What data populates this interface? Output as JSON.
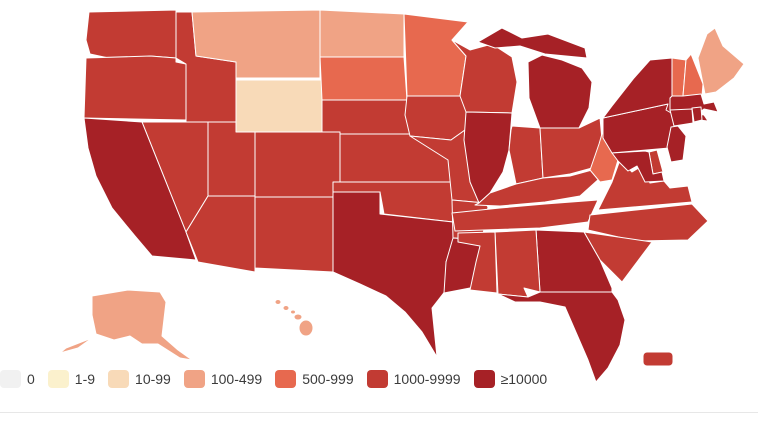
{
  "legend": {
    "items": [
      {
        "label": "0",
        "color": "#f1f1f1"
      },
      {
        "label": "1-9",
        "color": "#fbf1cd"
      },
      {
        "label": "10-99",
        "color": "#f8dab8"
      },
      {
        "label": "100-499",
        "color": "#f0a385"
      },
      {
        "label": "500-999",
        "color": "#e7694f"
      },
      {
        "label": "1000-9999",
        "color": "#c23b33"
      },
      {
        "label": "≥10000",
        "color": "#a62126"
      }
    ]
  },
  "map": {
    "border_color": "#ffffff",
    "background_color": "#ffffff",
    "divider_color": "#e7e7e7",
    "states": [
      {
        "abbr": "WA",
        "name": "Washington",
        "category": "1000-9999"
      },
      {
        "abbr": "OR",
        "name": "Oregon",
        "category": "1000-9999"
      },
      {
        "abbr": "CA",
        "name": "California",
        "category": "≥10000"
      },
      {
        "abbr": "NV",
        "name": "Nevada",
        "category": "1000-9999"
      },
      {
        "abbr": "ID",
        "name": "Idaho",
        "category": "1000-9999"
      },
      {
        "abbr": "MT",
        "name": "Montana",
        "category": "100-499"
      },
      {
        "abbr": "WY",
        "name": "Wyoming",
        "category": "10-99"
      },
      {
        "abbr": "UT",
        "name": "Utah",
        "category": "1000-9999"
      },
      {
        "abbr": "CO",
        "name": "Colorado",
        "category": "1000-9999"
      },
      {
        "abbr": "AZ",
        "name": "Arizona",
        "category": "1000-9999"
      },
      {
        "abbr": "NM",
        "name": "New Mexico",
        "category": "1000-9999"
      },
      {
        "abbr": "ND",
        "name": "North Dakota",
        "category": "100-499"
      },
      {
        "abbr": "SD",
        "name": "South Dakota",
        "category": "500-999"
      },
      {
        "abbr": "NE",
        "name": "Nebraska",
        "category": "1000-9999"
      },
      {
        "abbr": "KS",
        "name": "Kansas",
        "category": "1000-9999"
      },
      {
        "abbr": "OK",
        "name": "Oklahoma",
        "category": "1000-9999"
      },
      {
        "abbr": "TX",
        "name": "Texas",
        "category": "≥10000"
      },
      {
        "abbr": "MN",
        "name": "Minnesota",
        "category": "500-999"
      },
      {
        "abbr": "IA",
        "name": "Iowa",
        "category": "1000-9999"
      },
      {
        "abbr": "MO",
        "name": "Missouri",
        "category": "1000-9999"
      },
      {
        "abbr": "AR",
        "name": "Arkansas",
        "category": "1000-9999"
      },
      {
        "abbr": "LA",
        "name": "Louisiana",
        "category": "≥10000"
      },
      {
        "abbr": "WI",
        "name": "Wisconsin",
        "category": "1000-9999"
      },
      {
        "abbr": "MI",
        "name": "Michigan",
        "category": "≥10000"
      },
      {
        "abbr": "IL",
        "name": "Illinois",
        "category": "≥10000"
      },
      {
        "abbr": "IN",
        "name": "Indiana",
        "category": "1000-9999"
      },
      {
        "abbr": "OH",
        "name": "Ohio",
        "category": "1000-9999"
      },
      {
        "abbr": "KY",
        "name": "Kentucky",
        "category": "1000-9999"
      },
      {
        "abbr": "TN",
        "name": "Tennessee",
        "category": "1000-9999"
      },
      {
        "abbr": "MS",
        "name": "Mississippi",
        "category": "1000-9999"
      },
      {
        "abbr": "AL",
        "name": "Alabama",
        "category": "1000-9999"
      },
      {
        "abbr": "GA",
        "name": "Georgia",
        "category": "≥10000"
      },
      {
        "abbr": "FL",
        "name": "Florida",
        "category": "≥10000"
      },
      {
        "abbr": "SC",
        "name": "South Carolina",
        "category": "1000-9999"
      },
      {
        "abbr": "NC",
        "name": "North Carolina",
        "category": "1000-9999"
      },
      {
        "abbr": "VA",
        "name": "Virginia",
        "category": "1000-9999"
      },
      {
        "abbr": "WV",
        "name": "West Virginia",
        "category": "500-999"
      },
      {
        "abbr": "MD",
        "name": "Maryland",
        "category": "≥10000"
      },
      {
        "abbr": "DE",
        "name": "Delaware",
        "category": "1000-9999"
      },
      {
        "abbr": "NJ",
        "name": "New Jersey",
        "category": "≥10000"
      },
      {
        "abbr": "PA",
        "name": "Pennsylvania",
        "category": "≥10000"
      },
      {
        "abbr": "NY",
        "name": "New York",
        "category": "≥10000"
      },
      {
        "abbr": "CT",
        "name": "Connecticut",
        "category": "≥10000"
      },
      {
        "abbr": "RI",
        "name": "Rhode Island",
        "category": "≥10000"
      },
      {
        "abbr": "MA",
        "name": "Massachusetts",
        "category": "≥10000"
      },
      {
        "abbr": "VT",
        "name": "Vermont",
        "category": "500-999"
      },
      {
        "abbr": "NH",
        "name": "New Hampshire",
        "category": "500-999"
      },
      {
        "abbr": "ME",
        "name": "Maine",
        "category": "100-499"
      },
      {
        "abbr": "AK",
        "name": "Alaska",
        "category": "100-499"
      },
      {
        "abbr": "HI",
        "name": "Hawaii",
        "category": "100-499"
      },
      {
        "abbr": "PR",
        "name": "Puerto Rico",
        "category": "1000-9999"
      }
    ]
  }
}
